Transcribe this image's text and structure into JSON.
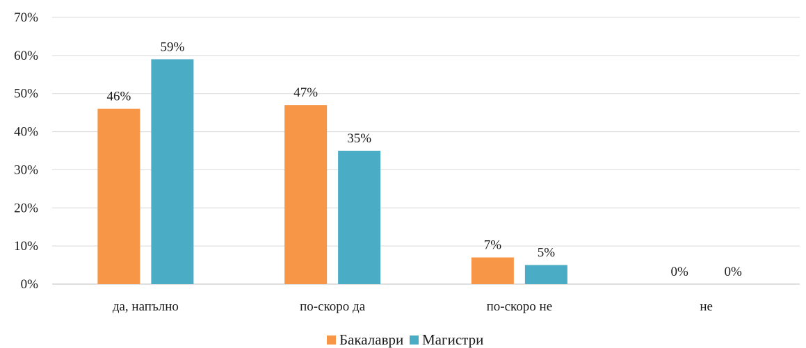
{
  "chart_data": {
    "type": "bar",
    "categories": [
      "да, напълно",
      "по-скоро да",
      "по-скоро не",
      "не"
    ],
    "series": [
      {
        "name": "Бакалаври",
        "values": [
          46,
          47,
          7,
          0
        ],
        "labels": [
          "46%",
          "47%",
          "7%",
          "0%"
        ],
        "color": "#F79646"
      },
      {
        "name": "Магистри",
        "values": [
          59,
          35,
          5,
          0
        ],
        "labels": [
          "59%",
          "35%",
          "5%",
          "0%"
        ],
        "color": "#4BACC6"
      }
    ],
    "ylim": [
      0,
      70
    ],
    "yticks": [
      0,
      10,
      20,
      30,
      40,
      50,
      60,
      70
    ],
    "ytick_labels": [
      "0%",
      "10%",
      "20%",
      "30%",
      "40%",
      "50%",
      "60%",
      "70%"
    ],
    "grid": true,
    "legend": "bottom-center",
    "title": "",
    "xlabel": "",
    "ylabel": ""
  }
}
